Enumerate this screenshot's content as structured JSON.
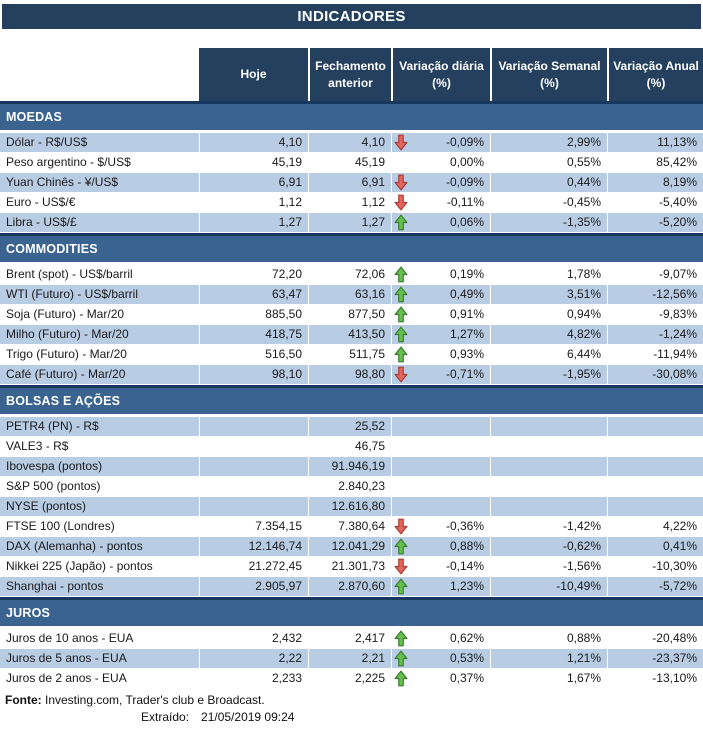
{
  "title": "INDICADORES",
  "columns": [
    "Hoje",
    "Fechamento anterior",
    "Variação diária (%)",
    "Variação Semanal (%)",
    "Variação Anual (%)"
  ],
  "sections": [
    {
      "name": "MOEDAS",
      "rows": [
        {
          "label": "Dólar - R$/US$",
          "hoje": "4,10",
          "fechamento": "4,10",
          "arrow": "down",
          "diaria": "-0,09%",
          "semanal": "2,99%",
          "anual": "11,13%"
        },
        {
          "label": "Peso argentino - $/US$",
          "hoje": "45,19",
          "fechamento": "45,19",
          "arrow": "",
          "diaria": "0,00%",
          "semanal": "0,55%",
          "anual": "85,42%"
        },
        {
          "label": "Yuan Chinês - ¥/US$",
          "hoje": "6,91",
          "fechamento": "6,91",
          "arrow": "down",
          "diaria": "-0,09%",
          "semanal": "0,44%",
          "anual": "8,19%"
        },
        {
          "label": "Euro - US$/€",
          "hoje": "1,12",
          "fechamento": "1,12",
          "arrow": "down",
          "diaria": "-0,11%",
          "semanal": "-0,45%",
          "anual": "-5,40%"
        },
        {
          "label": "Libra - US$/£",
          "hoje": "1,27",
          "fechamento": "1,27",
          "arrow": "up",
          "diaria": "0,06%",
          "semanal": "-1,35%",
          "anual": "-5,20%"
        }
      ]
    },
    {
      "name": "COMMODITIES",
      "rows": [
        {
          "label": "Brent (spot) - US$/barril",
          "hoje": "72,20",
          "fechamento": "72,06",
          "arrow": "up",
          "diaria": "0,19%",
          "semanal": "1,78%",
          "anual": "-9,07%"
        },
        {
          "label": "WTI (Futuro) - US$/barril",
          "hoje": "63,47",
          "fechamento": "63,16",
          "arrow": "up",
          "diaria": "0,49%",
          "semanal": "3,51%",
          "anual": "-12,56%"
        },
        {
          "label": "Soja (Futuro) - Mar/20",
          "hoje": "885,50",
          "fechamento": "877,50",
          "arrow": "up",
          "diaria": "0,91%",
          "semanal": "0,94%",
          "anual": "-9,83%"
        },
        {
          "label": "Milho (Futuro) - Mar/20",
          "hoje": "418,75",
          "fechamento": "413,50",
          "arrow": "up",
          "diaria": "1,27%",
          "semanal": "4,82%",
          "anual": "-1,24%"
        },
        {
          "label": "Trigo (Futuro) - Mar/20",
          "hoje": "516,50",
          "fechamento": "511,75",
          "arrow": "up",
          "diaria": "0,93%",
          "semanal": "6,44%",
          "anual": "-11,94%"
        },
        {
          "label": "Café (Futuro) - Mar/20",
          "hoje": "98,10",
          "fechamento": "98,80",
          "arrow": "down",
          "diaria": "-0,71%",
          "semanal": "-1,95%",
          "anual": "-30,08%"
        }
      ]
    },
    {
      "name": "BOLSAS E AÇÕES",
      "rows": [
        {
          "label": "PETR4 (PN) - R$",
          "hoje": "",
          "fechamento": "25,52",
          "arrow": "",
          "diaria": "",
          "semanal": "",
          "anual": ""
        },
        {
          "label": "VALE3 - R$",
          "hoje": "",
          "fechamento": "46,75",
          "arrow": "",
          "diaria": "",
          "semanal": "",
          "anual": ""
        },
        {
          "label": "Ibovespa (pontos)",
          "hoje": "",
          "fechamento": "91.946,19",
          "arrow": "",
          "diaria": "",
          "semanal": "",
          "anual": ""
        },
        {
          "label": "S&P 500 (pontos)",
          "hoje": "",
          "fechamento": "2.840,23",
          "arrow": "",
          "diaria": "",
          "semanal": "",
          "anual": ""
        },
        {
          "label": "NYSE (pontos)",
          "hoje": "",
          "fechamento": "12.616,80",
          "arrow": "",
          "diaria": "",
          "semanal": "",
          "anual": ""
        },
        {
          "label": "FTSE 100 (Londres)",
          "hoje": "7.354,15",
          "fechamento": "7.380,64",
          "arrow": "down",
          "diaria": "-0,36%",
          "semanal": "-1,42%",
          "anual": "4,22%"
        },
        {
          "label": "DAX (Alemanha) - pontos",
          "hoje": "12.146,74",
          "fechamento": "12.041,29",
          "arrow": "up",
          "diaria": "0,88%",
          "semanal": "-0,62%",
          "anual": "0,41%"
        },
        {
          "label": "Nikkei 225 (Japão) - pontos",
          "hoje": "21.272,45",
          "fechamento": "21.301,73",
          "arrow": "down",
          "diaria": "-0,14%",
          "semanal": "-1,56%",
          "anual": "-10,30%"
        },
        {
          "label": "Shanghai - pontos",
          "hoje": "2.905,97",
          "fechamento": "2.870,60",
          "arrow": "up",
          "diaria": "1,23%",
          "semanal": "-10,49%",
          "anual": "-5,72%"
        }
      ]
    },
    {
      "name": "JUROS",
      "rows": [
        {
          "label": "Juros de 10 anos - EUA",
          "hoje": "2,432",
          "fechamento": "2,417",
          "arrow": "up",
          "diaria": "0,62%",
          "semanal": "0,88%",
          "anual": "-20,48%"
        },
        {
          "label": "Juros de 5 anos - EUA",
          "hoje": "2,22",
          "fechamento": "2,21",
          "arrow": "up",
          "diaria": "0,53%",
          "semanal": "1,21%",
          "anual": "-23,37%"
        },
        {
          "label": "Juros de 2 anos - EUA",
          "hoje": "2,233",
          "fechamento": "2,225",
          "arrow": "up",
          "diaria": "0,37%",
          "semanal": "1,67%",
          "anual": "-13,10%"
        }
      ]
    }
  ],
  "footer": {
    "fonte_label": "Fonte:",
    "fonte_text": " Investing.com, Trader's club e Broadcast.",
    "extraido_label": "Extraído:",
    "extraido_value": "21/05/2019 09:24"
  },
  "colors": {
    "header_navy": "#24405E",
    "section_blue": "#3A648F",
    "section_top_line": "#17375E",
    "row_shaded_blue": "#B8CCE4",
    "up_arrow_green": "#66BE4D",
    "up_arrow_border": "#3A7A31",
    "down_arrow_red": "#E2655E",
    "down_arrow_border": "#A63C34"
  },
  "icons": {
    "up": "up-arrow-icon",
    "down": "down-arrow-icon"
  }
}
